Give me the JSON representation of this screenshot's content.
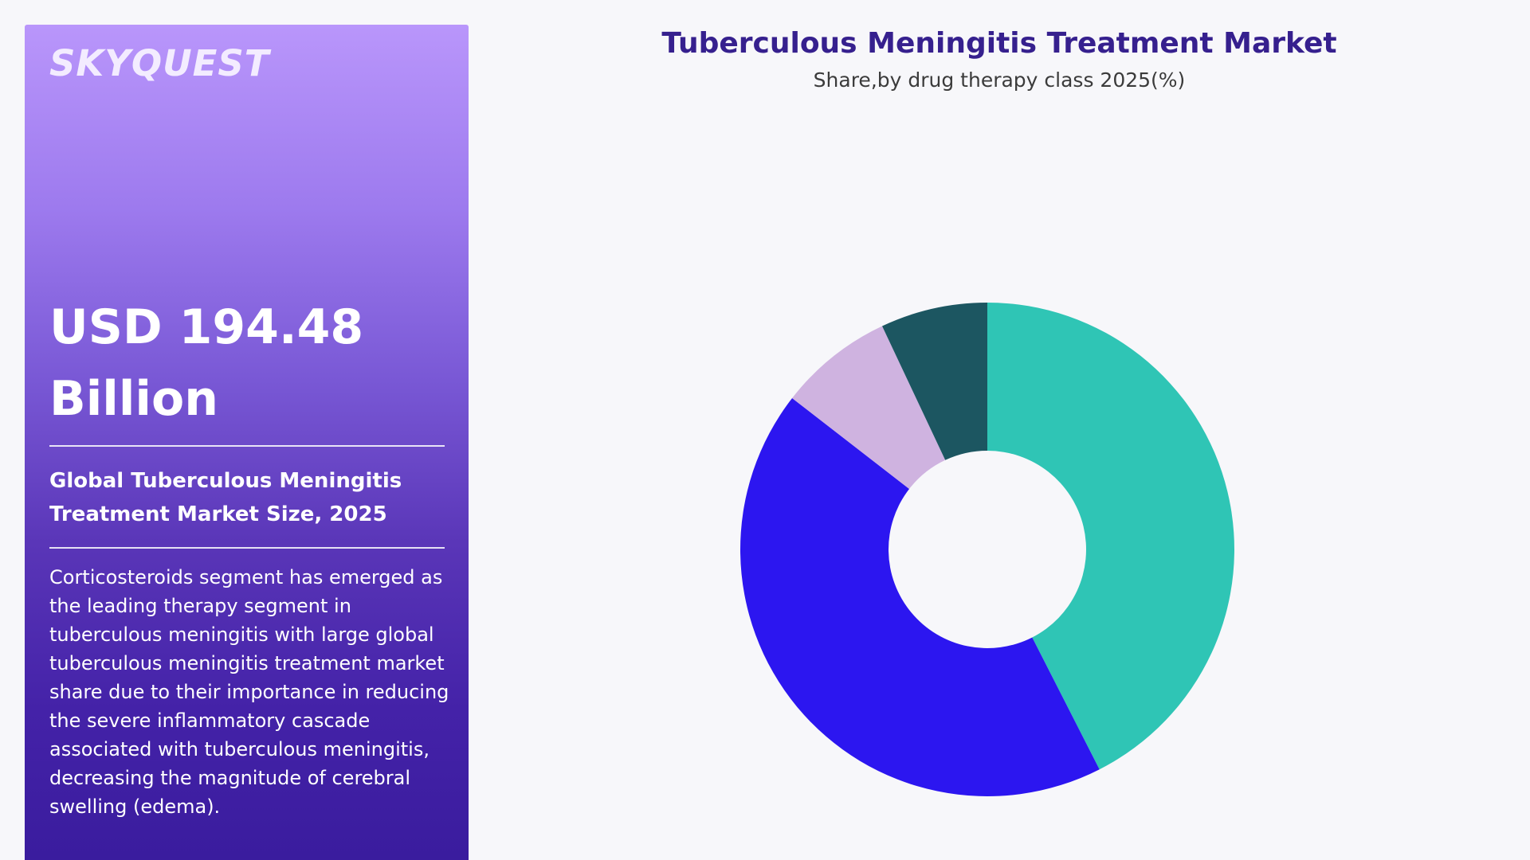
{
  "brand": {
    "logo_text": "SKYQUEST"
  },
  "summary": {
    "value": "USD 194.48 Billion",
    "label": "Global Tuberculous Meningitis Treatment Market Size, 2025",
    "description": "Corticosteroids segment has emerged as the leading therapy segment in tuberculous meningitis with large global tuberculous meningitis treatment market share due to their importance in reducing the severe inflammatory cascade associated with tuberculous meningitis, decreasing the magnitude of cerebral swelling (edema)."
  },
  "colors": {
    "title": "#36208e",
    "panel_top": "#b996fb",
    "panel_bottom": "#3a1c9e"
  },
  "chart_data": {
    "type": "pie",
    "title": "Tuberculous Meningitis Treatment Market",
    "subtitle": "Share,by drug therapy class 2025(%)",
    "donut": true,
    "start_angle_deg": 0,
    "direction": "clockwise",
    "slices": [
      {
        "value": 42.5,
        "color": "#2fc5b5"
      },
      {
        "value": 43.0,
        "color": "#2c16f0"
      },
      {
        "value": 7.5,
        "color": "#cfb3e0"
      },
      {
        "value": 7.0,
        "color": "#1c5661"
      }
    ]
  }
}
